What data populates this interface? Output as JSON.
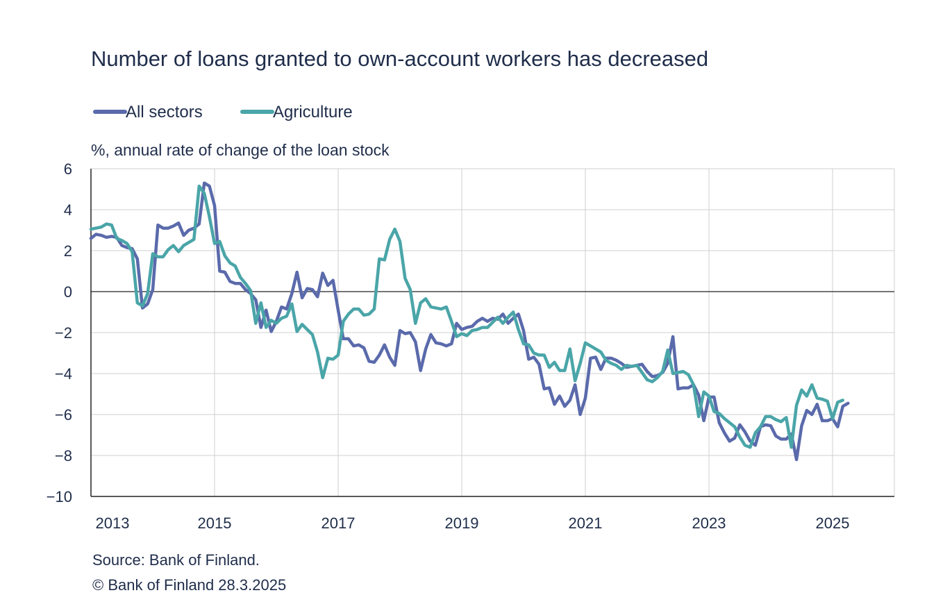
{
  "chart_data": {
    "type": "line",
    "title": "Number of loans granted to own-account workers has decreased",
    "ylabel": "%, annual rate of change of the loan stock",
    "xlabel": "",
    "ylim": [
      -10,
      6
    ],
    "yticks": [
      6,
      4,
      2,
      0,
      -2,
      -4,
      -6,
      -8,
      -10
    ],
    "ytick_labels": [
      "6",
      "4",
      "2",
      "0",
      "−2",
      "−4",
      "−6",
      "−8",
      "−10"
    ],
    "xlim": [
      2013,
      2026
    ],
    "xticks": [
      2013,
      2015,
      2017,
      2019,
      2021,
      2023,
      2025
    ],
    "xtick_labels": [
      "2013",
      "2015",
      "2017",
      "2019",
      "2021",
      "2023",
      "2025"
    ],
    "grid": true,
    "legend_position": "top-left",
    "start": "2013-01",
    "frequency": "monthly",
    "source": "Source: Bank of Finland.",
    "copyright": "© Bank of Finland 28.3.2025",
    "series": [
      {
        "name": "All sectors",
        "color": "#5a6aab",
        "values": [
          2.6,
          2.8,
          2.75,
          2.65,
          2.7,
          2.65,
          2.25,
          2.15,
          2.1,
          1.6,
          -0.8,
          -0.6,
          0.1,
          3.25,
          3.1,
          3.1,
          3.2,
          3.35,
          2.75,
          3.0,
          3.1,
          3.3,
          5.3,
          5.15,
          4.2,
          1.0,
          0.95,
          0.5,
          0.4,
          0.4,
          0.1,
          -0.1,
          -0.4,
          -1.75,
          -0.9,
          -1.95,
          -1.45,
          -0.75,
          -0.85,
          -0.1,
          0.95,
          -0.3,
          0.15,
          0.1,
          -0.25,
          0.9,
          0.3,
          0.55,
          -0.9,
          -2.3,
          -2.3,
          -2.65,
          -2.6,
          -2.75,
          -3.4,
          -3.45,
          -3.1,
          -2.6,
          -3.2,
          -3.6,
          -1.9,
          -2.05,
          -2.0,
          -2.45,
          -3.85,
          -2.8,
          -2.1,
          -2.5,
          -2.55,
          -2.65,
          -2.55,
          -1.55,
          -1.85,
          -1.75,
          -1.7,
          -1.45,
          -1.3,
          -1.45,
          -1.3,
          -1.35,
          -1.1,
          -1.55,
          -1.3,
          -1.1,
          -1.9,
          -3.3,
          -3.2,
          -3.55,
          -4.75,
          -4.7,
          -5.5,
          -5.1,
          -5.6,
          -5.3,
          -4.55,
          -6.0,
          -5.2,
          -3.25,
          -3.2,
          -3.8,
          -3.25,
          -3.25,
          -3.35,
          -3.5,
          -3.7,
          -3.65,
          -3.6,
          -3.55,
          -3.9,
          -4.15,
          -4.1,
          -3.95,
          -3.5,
          -2.2,
          -4.75,
          -4.7,
          -4.7,
          -4.55,
          -5.05,
          -6.3,
          -5.15,
          -5.15,
          -6.4,
          -6.9,
          -7.3,
          -7.15,
          -6.5,
          -6.85,
          -7.3,
          -7.5,
          -6.6,
          -6.5,
          -6.55,
          -7.05,
          -7.2,
          -7.2,
          -6.95,
          -8.2,
          -6.55,
          -5.8,
          -6.0,
          -5.5,
          -6.3,
          -6.3,
          -6.2,
          -6.6,
          -5.6,
          -5.45
        ]
      },
      {
        "name": "Agriculture",
        "color": "#4aa5a8",
        "values": [
          3.05,
          3.1,
          3.15,
          3.3,
          3.25,
          2.6,
          2.5,
          2.35,
          1.95,
          -0.55,
          -0.7,
          -0.1,
          1.85,
          1.7,
          1.7,
          2.05,
          2.25,
          1.95,
          2.25,
          2.4,
          2.55,
          5.15,
          4.8,
          3.65,
          2.35,
          2.45,
          1.75,
          1.4,
          1.25,
          0.7,
          0.4,
          0.05,
          -1.55,
          -0.55,
          -1.75,
          -1.4,
          -1.55,
          -1.3,
          -1.2,
          -0.6,
          -1.95,
          -1.6,
          -1.85,
          -2.1,
          -2.95,
          -4.2,
          -3.25,
          -3.3,
          -3.1,
          -1.45,
          -1.1,
          -0.85,
          -0.85,
          -1.15,
          -1.1,
          -0.85,
          1.6,
          1.55,
          2.55,
          3.05,
          2.45,
          0.65,
          0.1,
          -1.55,
          -0.55,
          -0.35,
          -0.75,
          -0.8,
          -0.85,
          -0.75,
          -1.45,
          -2.2,
          -2.05,
          -2.15,
          -1.9,
          -1.85,
          -1.75,
          -1.75,
          -1.5,
          -1.25,
          -1.55,
          -1.25,
          -1.0,
          -1.85,
          -2.55,
          -2.6,
          -3.0,
          -3.1,
          -3.1,
          -3.7,
          -3.45,
          -3.85,
          -3.85,
          -2.8,
          -4.35,
          -3.5,
          -2.5,
          -2.65,
          -2.8,
          -2.95,
          -3.35,
          -3.5,
          -3.6,
          -3.8,
          -3.6,
          -3.65,
          -3.6,
          -3.95,
          -4.3,
          -4.4,
          -4.2,
          -3.9,
          -2.85,
          -4.0,
          -3.95,
          -3.9,
          -4.05,
          -4.55,
          -6.1,
          -4.9,
          -5.1,
          -5.85,
          -5.95,
          -6.2,
          -6.4,
          -6.6,
          -7.1,
          -7.5,
          -7.6,
          -6.9,
          -6.6,
          -6.1,
          -6.1,
          -6.25,
          -6.35,
          -6.15,
          -7.6,
          -5.55,
          -4.8,
          -5.1,
          -4.55,
          -5.2,
          -5.25,
          -5.35,
          -6.2,
          -5.4,
          -5.3
        ]
      }
    ]
  }
}
